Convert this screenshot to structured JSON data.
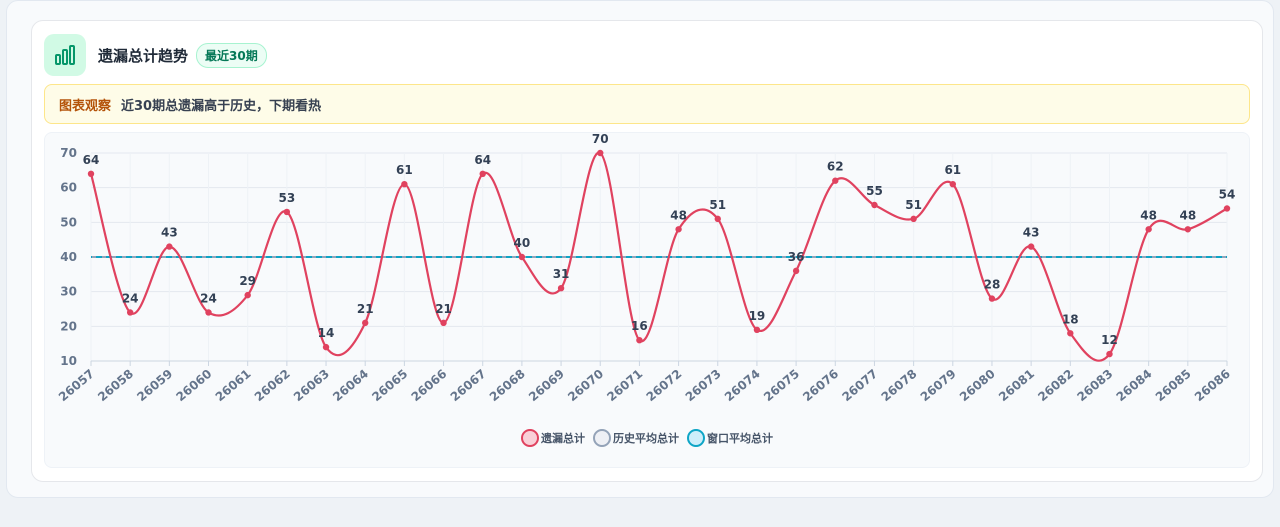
{
  "header": {
    "title": "遗漏总计趋势",
    "badge": "最近30期",
    "icon": "bar-chart-icon"
  },
  "insight": {
    "label": "图表观察",
    "text": "近30期总遗漏高于历史，下期看热"
  },
  "colors": {
    "line": "#e0425f",
    "history": "#94a3b8",
    "window": "#0ea5c6",
    "accent": "#10b981"
  },
  "chart_data": {
    "type": "line",
    "categories": [
      "26057",
      "26058",
      "26059",
      "26060",
      "26061",
      "26062",
      "26063",
      "26064",
      "26065",
      "26066",
      "26067",
      "26068",
      "26069",
      "26070",
      "26071",
      "26072",
      "26073",
      "26074",
      "26075",
      "26076",
      "26077",
      "26078",
      "26079",
      "26080",
      "26081",
      "26082",
      "26083",
      "26084",
      "26085",
      "26086"
    ],
    "series": [
      {
        "name": "遗漏总计",
        "values": [
          64,
          24,
          43,
          24,
          29,
          53,
          14,
          21,
          61,
          21,
          64,
          40,
          31,
          70,
          16,
          48,
          51,
          19,
          36,
          62,
          55,
          51,
          61,
          28,
          43,
          18,
          12,
          48,
          48,
          54
        ]
      },
      {
        "name": "历史平均总计",
        "values": [
          40,
          40,
          40,
          40,
          40,
          40,
          40,
          40,
          40,
          40,
          40,
          40,
          40,
          40,
          40,
          40,
          40,
          40,
          40,
          40,
          40,
          40,
          40,
          40,
          40,
          40,
          40,
          40,
          40,
          40
        ]
      },
      {
        "name": "窗口平均总计",
        "values": [
          40,
          40,
          40,
          40,
          40,
          40,
          40,
          40,
          40,
          40,
          40,
          40,
          40,
          40,
          40,
          40,
          40,
          40,
          40,
          40,
          40,
          40,
          40,
          40,
          40,
          40,
          40,
          40,
          40,
          40
        ]
      }
    ],
    "ylim": [
      10,
      70
    ],
    "yticks": [
      10,
      20,
      30,
      40,
      50,
      60,
      70
    ],
    "grid": true,
    "legend_position": "bottom"
  }
}
